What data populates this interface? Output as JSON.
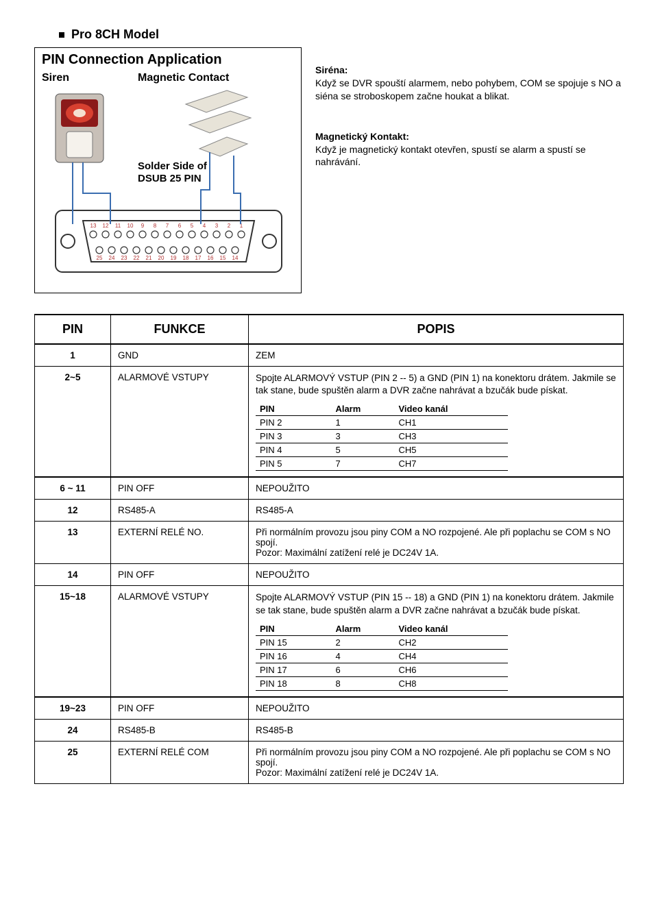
{
  "title": "Pro 8CH Model",
  "diagram": {
    "header": "PIN Connection Application",
    "label_siren": "Siren",
    "label_contact": "Magnetic Contact",
    "solder_side": "Solder Side of",
    "dsub": "DSUB 25 PIN",
    "top_pins": [
      "13",
      "12",
      "11",
      "10",
      "9",
      "8",
      "7",
      "6",
      "5",
      "4",
      "3",
      "2",
      "1"
    ],
    "bot_pins": [
      "25",
      "24",
      "23",
      "22",
      "21",
      "20",
      "19",
      "18",
      "17",
      "16",
      "15",
      "14"
    ]
  },
  "sirena": {
    "head": "Siréna:",
    "body": "Když se DVR spouští alarmem, nebo pohybem, COM se spojuje s NO a siéna se stroboskopem začne houkat a blikat."
  },
  "magkontakt": {
    "head": "Magnetický Kontakt:",
    "body": "Když je magnetický kontakt otevřen, spustí se alarm a spustí se nahrávání."
  },
  "table_headers": {
    "pin": "PIN",
    "funkce": "FUNKCE",
    "popis": "POPIS"
  },
  "inner_headers": {
    "pin": "PIN",
    "alarm": "Alarm",
    "video": "Video kanál"
  },
  "rows": {
    "r1": {
      "pin": "1",
      "func": "GND",
      "desc": "ZEM"
    },
    "r2": {
      "pin": "2~5",
      "func": "ALARMOVÉ VSTUPY",
      "note": "Spojte ALARMOVÝ VSTUP (PIN 2 -- 5) a GND (PIN 1) na konektoru drátem. Jakmile se tak stane, bude spuštěn alarm a DVR začne nahrávat a bzučák bude pískat.",
      "map": [
        {
          "p": "PIN 2",
          "a": "1",
          "v": "CH1"
        },
        {
          "p": "PIN 3",
          "a": "3",
          "v": "CH3"
        },
        {
          "p": "PIN 4",
          "a": "5",
          "v": "CH5"
        },
        {
          "p": "PIN 5",
          "a": "7",
          "v": "CH7"
        }
      ]
    },
    "r3": {
      "pin": "6 ~ 11",
      "func": "PIN OFF",
      "desc": "NEPOUŽITO"
    },
    "r4": {
      "pin": "12",
      "func": "RS485-A",
      "desc": "RS485-A"
    },
    "r5": {
      "pin": "13",
      "func": "EXTERNÍ RELÉ NO.",
      "desc": "Při normálním provozu jsou piny COM a NO rozpojené. Ale při poplachu se COM s NO spojí.\nPozor: Maximální zatížení relé je DC24V 1A."
    },
    "r6": {
      "pin": "14",
      "func": "PIN OFF",
      "desc": "NEPOUŽITO"
    },
    "r7": {
      "pin": "15~18",
      "func": "ALARMOVÉ VSTUPY",
      "note": "Spojte ALARMOVÝ VSTUP (PIN 15 -- 18) a GND (PIN 1) na konektoru drátem. Jakmile se tak stane, bude spuštěn alarm a DVR začne nahrávat a bzučák bude pískat.",
      "map": [
        {
          "p": "PIN 15",
          "a": "2",
          "v": "CH2"
        },
        {
          "p": "PIN 16",
          "a": "4",
          "v": "CH4"
        },
        {
          "p": "PIN 17",
          "a": "6",
          "v": "CH6"
        },
        {
          "p": "PIN 18",
          "a": "8",
          "v": "CH8"
        }
      ]
    },
    "r8": {
      "pin": "19~23",
      "func": "PIN OFF",
      "desc": "NEPOUŽITO"
    },
    "r9": {
      "pin": "24",
      "func": "RS485-B",
      "desc": "RS485-B"
    },
    "r10": {
      "pin": "25",
      "func": "EXTERNÍ RELÉ COM",
      "desc": "Při normálním provozu jsou piny COM a NO rozpojené. Ale při poplachu se COM s NO spojí.\nPozor: Maximální zatížení relé je DC24V 1A."
    }
  }
}
